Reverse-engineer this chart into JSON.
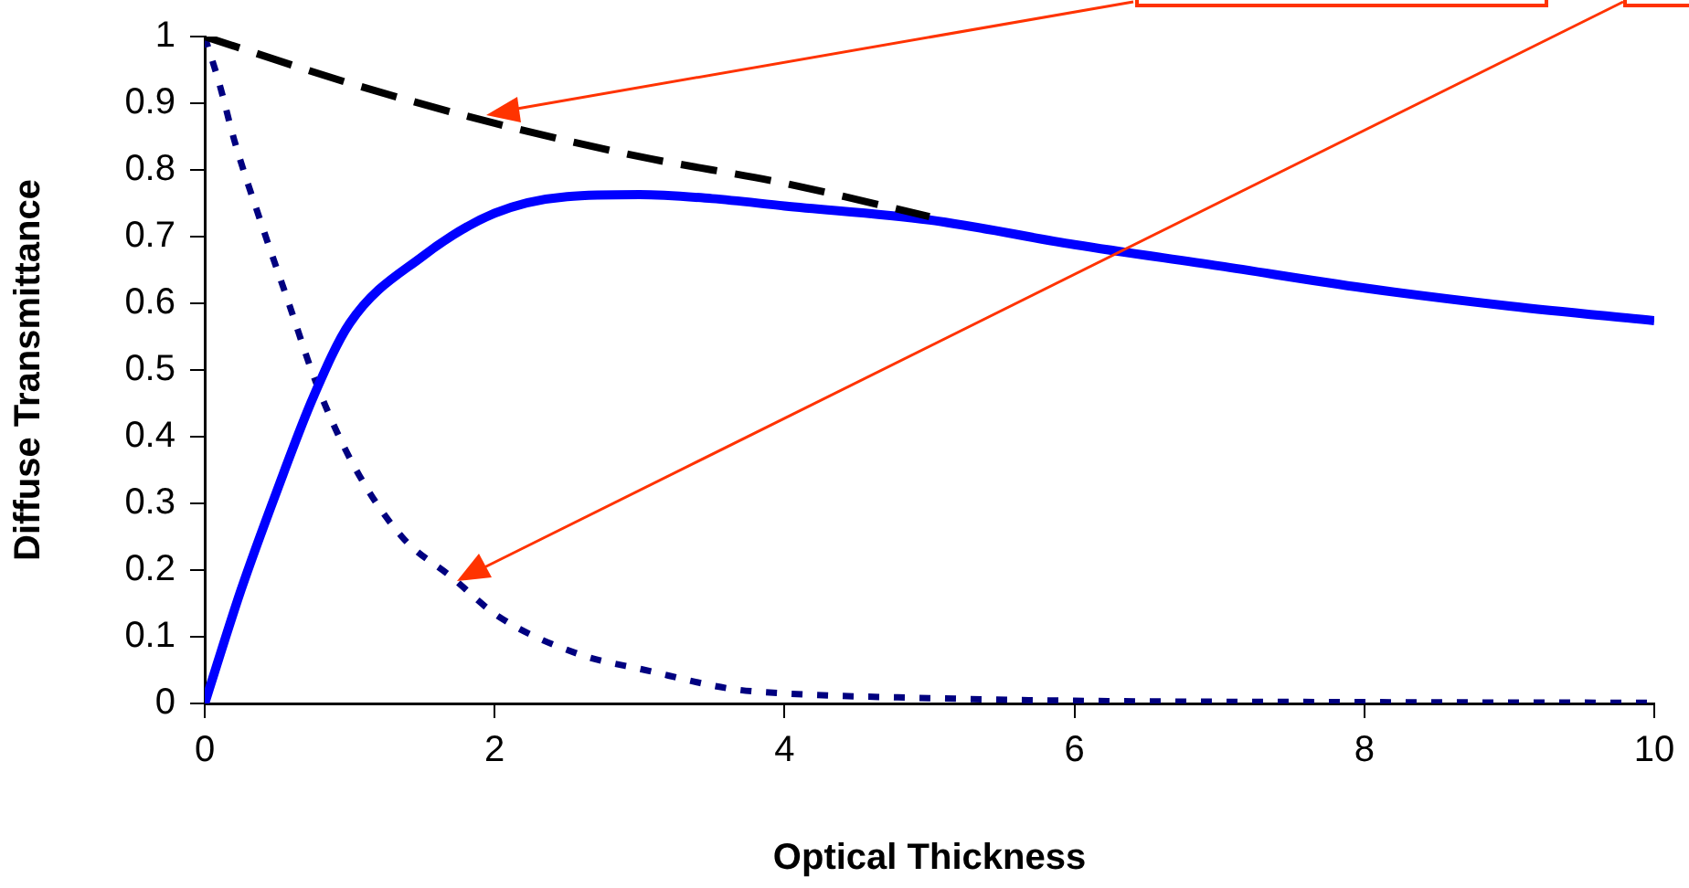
{
  "chart_data": {
    "type": "line",
    "xlabel": "Optical Thickness",
    "ylabel": "Diffuse Transmittance",
    "xlim": [
      0,
      10
    ],
    "xticks": [
      0,
      2,
      4,
      6,
      8,
      10
    ],
    "ylim": [
      0,
      1
    ],
    "yticks": [
      0,
      0.1,
      0.2,
      0.3,
      0.4,
      0.5,
      0.6,
      0.7,
      0.8,
      0.9,
      1
    ],
    "grid": false,
    "legend": false,
    "marker": "none",
    "series": [
      {
        "color": "#000000",
        "line_style": "dashed",
        "x": [
          0,
          1,
          2,
          3,
          4,
          5
        ],
        "values": [
          1,
          0.93,
          0.87,
          0.82,
          0.78,
          0.73
        ]
      },
      {
        "color": "#0000ff",
        "line_style": "solid",
        "x": [
          0,
          0.25,
          0.5,
          0.75,
          1,
          1.5,
          2,
          2.5,
          3,
          3.5,
          4,
          5,
          6,
          7,
          8,
          9,
          10
        ],
        "values": [
          0,
          0.17,
          0.32,
          0.46,
          0.57,
          0.67,
          0.735,
          0.76,
          0.763,
          0.757,
          0.746,
          0.725,
          0.688,
          0.656,
          0.623,
          0.596,
          0.574
        ]
      },
      {
        "color": "#000080",
        "line_style": "dotted",
        "x": [
          0,
          0.1,
          0.21,
          0.39,
          0.58,
          0.77,
          1.02,
          1.36,
          1.7,
          2.03,
          2.58,
          3.04,
          3.63,
          4,
          5,
          6,
          8,
          10
        ],
        "values": [
          1,
          0.93,
          0.84,
          0.72,
          0.6,
          0.48,
          0.36,
          0.25,
          0.19,
          0.13,
          0.074,
          0.05,
          0.022,
          0.015,
          0.008,
          0.004,
          0.002,
          0.001
        ]
      }
    ]
  }
}
